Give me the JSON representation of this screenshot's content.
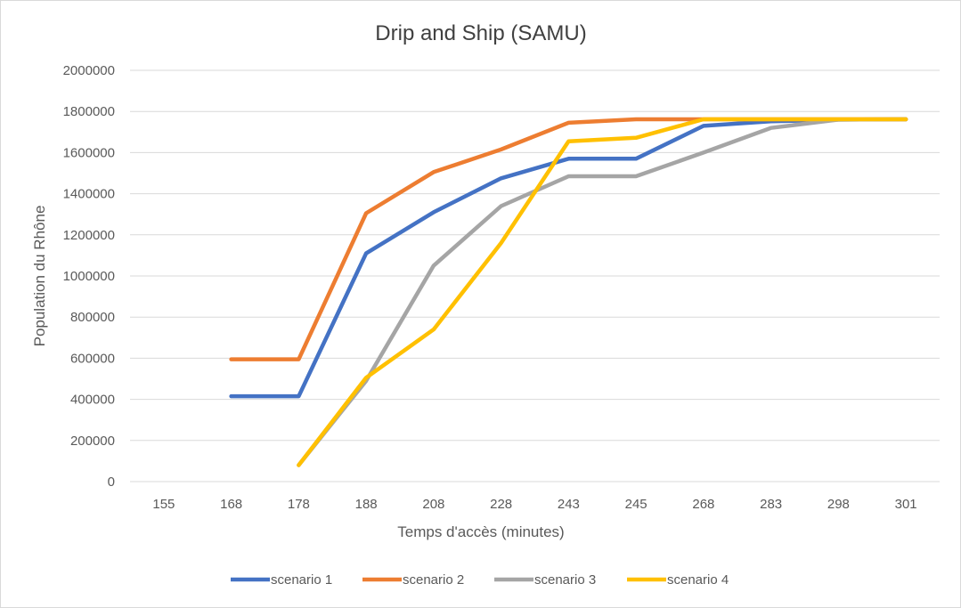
{
  "chart_data": {
    "type": "line",
    "title": "Drip and Ship (SAMU)",
    "xlabel": "Temps d'accès (minutes)",
    "ylabel": "Population du Rhône",
    "categories": [
      "155",
      "168",
      "178",
      "188",
      "208",
      "228",
      "243",
      "245",
      "268",
      "283",
      "298",
      "301"
    ],
    "ylim": [
      0,
      2000000
    ],
    "yticks": [
      "0",
      "200000",
      "400000",
      "600000",
      "800000",
      "1000000",
      "1200000",
      "1400000",
      "1600000",
      "1800000",
      "2000000"
    ],
    "grid": "horizontal",
    "legend_position": "bottom",
    "series": [
      {
        "name": "scenario 1",
        "color": "#4472C4",
        "values": [
          null,
          415000,
          415000,
          1110000,
          1310000,
          1475000,
          1570000,
          1570000,
          1730000,
          1752000,
          1760000,
          1762000
        ]
      },
      {
        "name": "scenario 2",
        "color": "#ED7D31",
        "values": [
          null,
          595000,
          595000,
          1305000,
          1505000,
          1615000,
          1745000,
          1762000,
          1762000,
          1762000,
          1762000,
          1762000
        ]
      },
      {
        "name": "scenario 3",
        "color": "#A5A5A5",
        "values": [
          null,
          null,
          80000,
          490000,
          1050000,
          1340000,
          1485000,
          1485000,
          1600000,
          1720000,
          1760000,
          1762000
        ]
      },
      {
        "name": "scenario 4",
        "color": "#FFC000",
        "values": [
          null,
          null,
          80000,
          505000,
          740000,
          1160000,
          1655000,
          1672000,
          1762000,
          1762000,
          1762000,
          1762000
        ]
      }
    ]
  }
}
